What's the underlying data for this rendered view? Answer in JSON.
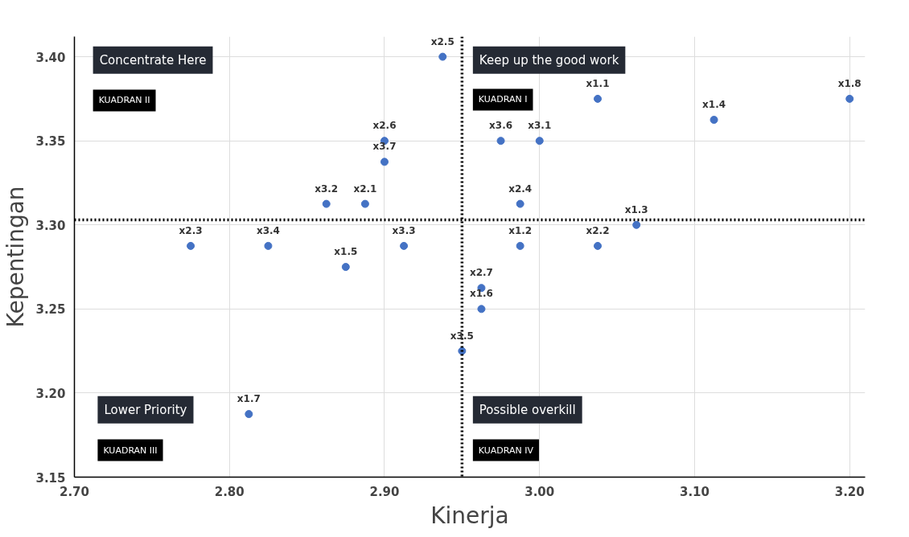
{
  "chart_data": {
    "type": "scatter",
    "xlabel": "Kinerja",
    "ylabel": "Kepentingan",
    "color": "#4472c4",
    "marker": "circle",
    "grid": true,
    "x": [
      2.9375,
      3.0375,
      3.2,
      3.1125,
      2.975,
      3.0,
      2.9,
      2.9,
      2.8625,
      2.8875,
      2.9875,
      3.0625,
      2.775,
      2.825,
      2.9125,
      2.9875,
      3.0375,
      2.875,
      2.9625,
      2.9625,
      2.95,
      2.8125
    ],
    "values": [
      3.4,
      3.375,
      3.375,
      3.3625,
      3.35,
      3.35,
      3.35,
      3.3375,
      3.3125,
      3.3125,
      3.3125,
      3.3,
      3.2875,
      3.2875,
      3.2875,
      3.2875,
      3.2875,
      3.275,
      3.2625,
      3.25,
      3.225,
      3.1875
    ],
    "xlim": [
      2.7,
      3.21
    ],
    "ylim": [
      3.15,
      3.412
    ],
    "xticks": [
      {
        "value": 2.7,
        "label": "2.70"
      },
      {
        "value": 2.8,
        "label": "2.80"
      },
      {
        "value": 2.9,
        "label": "2.90"
      },
      {
        "value": 3.0,
        "label": "3.00"
      },
      {
        "value": 3.1,
        "label": "3.10"
      },
      {
        "value": 3.2,
        "label": "3.20"
      }
    ],
    "yticks": [
      {
        "value": 3.15,
        "label": "3.15"
      },
      {
        "value": 3.2,
        "label": "3.20"
      },
      {
        "value": 3.25,
        "label": "3.25"
      },
      {
        "value": 3.3,
        "label": "3.30"
      },
      {
        "value": 3.35,
        "label": "3.35"
      },
      {
        "value": 3.4,
        "label": "3.40"
      }
    ],
    "ref_lines": [
      {
        "axis": "x",
        "value": 2.95,
        "line_style": "dotted",
        "color": "#000000"
      },
      {
        "axis": "y",
        "value": 3.303,
        "line_style": "dotted",
        "color": "#000000"
      }
    ],
    "annotations": [
      "Concentrate Here",
      "KUADRAN II",
      "Keep up the good work",
      "KUADRAN I",
      "Lower Priority",
      "KUADRAN III",
      "Possible overkill",
      "KUADRAN IV",
      {
        "text": "x2.5",
        "x": 2.9375,
        "y": 3.4
      },
      {
        "text": "x1.1",
        "x": 3.0375,
        "y": 3.375
      },
      {
        "text": "x1.8",
        "x": 3.2,
        "y": 3.375
      },
      {
        "text": "x1.4",
        "x": 3.1125,
        "y": 3.3625
      },
      {
        "text": "x3.6",
        "x": 2.975,
        "y": 3.35
      },
      {
        "text": "x3.1",
        "x": 3.0,
        "y": 3.35
      },
      {
        "text": "x2.6",
        "x": 2.9,
        "y": 3.35
      },
      {
        "text": "x3.7",
        "x": 2.9,
        "y": 3.3375
      },
      {
        "text": "x3.2",
        "x": 2.8625,
        "y": 3.3125
      },
      {
        "text": "x2.1",
        "x": 2.8875,
        "y": 3.3125
      },
      {
        "text": "x2.4",
        "x": 2.9875,
        "y": 3.3125
      },
      {
        "text": "x1.3",
        "x": 3.0625,
        "y": 3.3
      },
      {
        "text": "x2.3",
        "x": 2.775,
        "y": 3.2875
      },
      {
        "text": "x3.4",
        "x": 2.825,
        "y": 3.2875
      },
      {
        "text": "x3.3",
        "x": 2.9125,
        "y": 3.2875
      },
      {
        "text": "x1.2",
        "x": 2.9875,
        "y": 3.2875
      },
      {
        "text": "x2.2",
        "x": 3.0375,
        "y": 3.2875
      },
      {
        "text": "x1.5",
        "x": 2.875,
        "y": 3.275
      },
      {
        "text": "x2.7",
        "x": 2.9625,
        "y": 3.2625
      },
      {
        "text": "x1.6",
        "x": 2.9625,
        "y": 3.25
      },
      {
        "text": "x3.5",
        "x": 2.95,
        "y": 3.225
      },
      {
        "text": "x1.7",
        "x": 2.8125,
        "y": 3.1875
      }
    ]
  }
}
